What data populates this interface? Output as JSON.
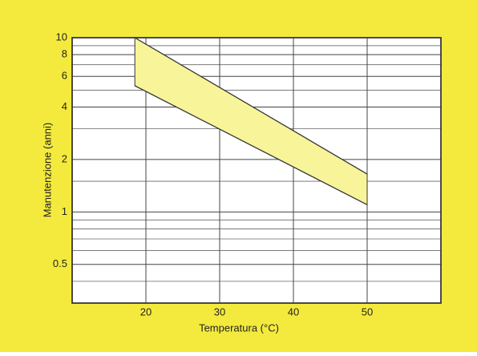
{
  "chart_data": {
    "type": "band",
    "xlabel": "Temperatura (°C)",
    "ylabel": "Manutenzione (anni)",
    "x": [
      18.5,
      50
    ],
    "series": [
      {
        "values": [
          10,
          1.65
        ],
        "color": "#333333"
      },
      {
        "values": [
          5.3,
          1.1
        ],
        "color": "#333333"
      }
    ],
    "fill_color": "#f7f49a",
    "xlim": [
      10,
      60
    ],
    "xticks": [
      20,
      30,
      40,
      50
    ],
    "ylim": [
      0.3,
      10
    ],
    "yticks": [
      0.5,
      1,
      2,
      4,
      6,
      8,
      10
    ],
    "y_minor_grid": [
      0.4,
      0.6,
      0.7,
      0.8,
      0.9,
      1.5,
      3,
      5,
      7,
      9
    ],
    "log_y": true,
    "grid": true
  }
}
